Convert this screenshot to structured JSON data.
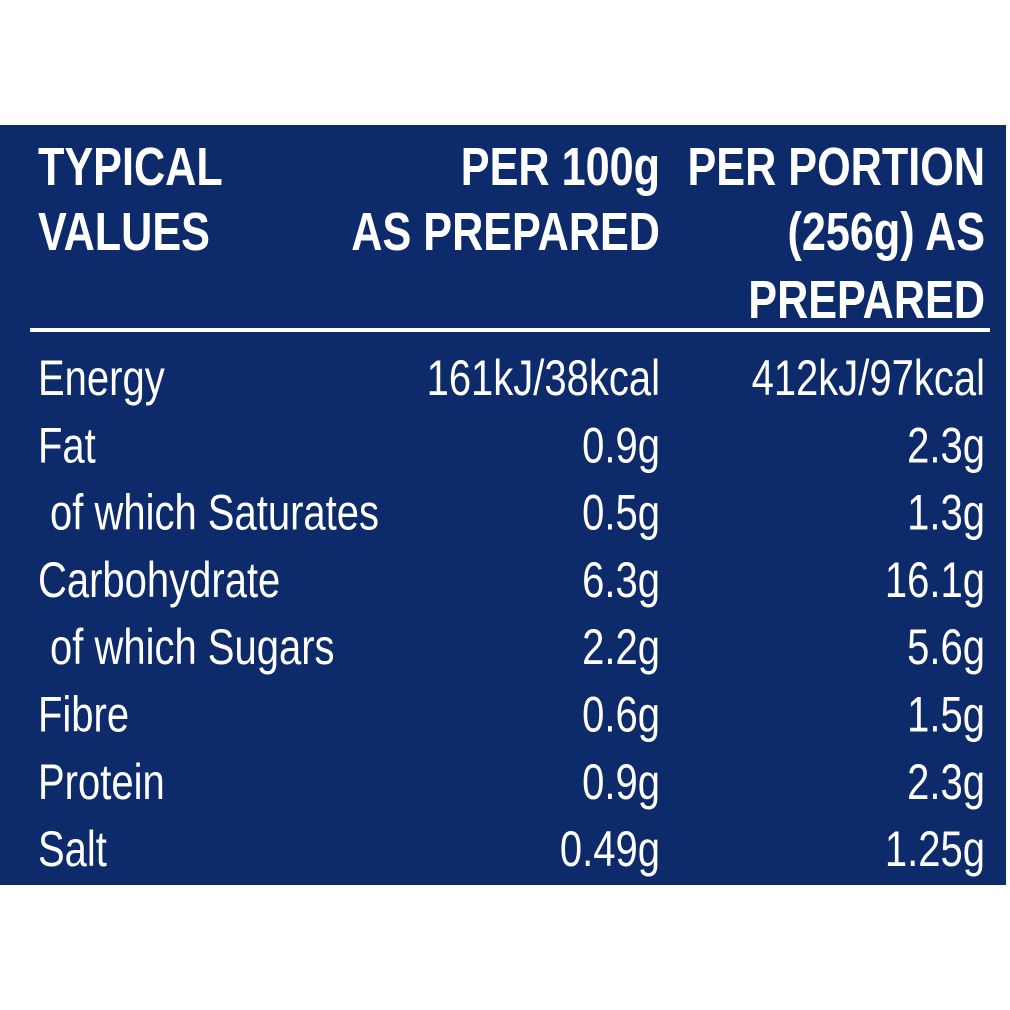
{
  "table": {
    "header": [
      [
        "TYPICAL",
        "VALUES"
      ],
      [
        "PER 100g",
        "AS PREPARED"
      ],
      [
        "PER PORTION",
        "(256g) AS",
        "PREPARED"
      ]
    ],
    "rows": [
      [
        "Energy",
        "161kJ/38kcal",
        "412kJ/97kcal"
      ],
      [
        "Fat",
        "0.9g",
        "2.3g"
      ],
      [
        "of which Saturates",
        "0.5g",
        "1.3g"
      ],
      [
        "Carbohydrate",
        "6.3g",
        "16.1g"
      ],
      [
        "of which Sugars",
        "2.2g",
        "5.6g"
      ],
      [
        "Fibre",
        "0.6g",
        "1.5g"
      ],
      [
        "Protein",
        "0.9g",
        "2.3g"
      ],
      [
        "Salt",
        "0.49g",
        "1.25g"
      ]
    ]
  }
}
